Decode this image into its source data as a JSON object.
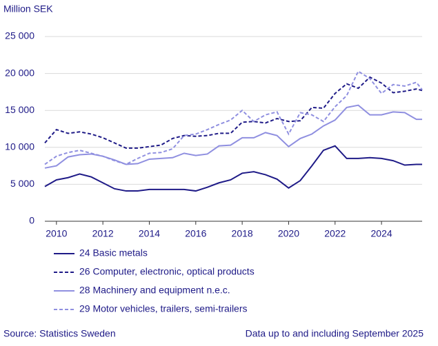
{
  "chart_data": {
    "type": "line",
    "y_label": "Million SEK",
    "x": [
      2009.5,
      2010,
      2010.5,
      2011,
      2011.5,
      2012,
      2012.5,
      2013,
      2013.5,
      2014,
      2014.5,
      2015,
      2015.5,
      2016,
      2016.5,
      2017,
      2017.5,
      2018,
      2018.5,
      2019,
      2019.5,
      2020,
      2020.5,
      2021,
      2021.5,
      2022,
      2022.5,
      2023,
      2023.5,
      2024,
      2024.5,
      2025,
      2025.5,
      2025.75
    ],
    "series": [
      {
        "name": "24 Basic metals",
        "color": "#1e1a87",
        "dash": false,
        "values": [
          4700,
          5600,
          5900,
          6400,
          6000,
          5200,
          4400,
          4100,
          4100,
          4300,
          4300,
          4300,
          4300,
          4100,
          4600,
          5200,
          5600,
          6500,
          6700,
          6300,
          5700,
          4500,
          5500,
          7500,
          9600,
          10200,
          8500,
          8500,
          8600,
          8500,
          8200,
          7600,
          7700,
          7700
        ]
      },
      {
        "name": "26 Computer, electronic, optical products",
        "color": "#1e1a87",
        "dash": true,
        "values": [
          10600,
          12400,
          11900,
          12100,
          11800,
          11300,
          10600,
          9900,
          9900,
          10100,
          10300,
          11200,
          11600,
          11500,
          11600,
          11900,
          11900,
          13400,
          13500,
          13300,
          13900,
          13500,
          13600,
          15400,
          15300,
          17300,
          18600,
          18000,
          19500,
          18700,
          17400,
          17600,
          17900,
          17700
        ]
      },
      {
        "name": "28 Machinery and equipment n.e.c.",
        "color": "#8f8fe0",
        "dash": false,
        "values": [
          7200,
          7500,
          8700,
          9000,
          9100,
          8800,
          8300,
          7700,
          7800,
          8400,
          8500,
          8600,
          9200,
          8900,
          9100,
          10200,
          10300,
          11300,
          11300,
          12000,
          11600,
          10100,
          11200,
          11800,
          12900,
          13700,
          15400,
          15700,
          14400,
          14400,
          14800,
          14700,
          13800,
          13800
        ]
      },
      {
        "name": "29 Motor vehicles, trailers, semi-trailers",
        "color": "#8f8fe0",
        "dash": true,
        "values": [
          7700,
          8800,
          9300,
          9600,
          9200,
          8800,
          8200,
          7700,
          8500,
          9200,
          9300,
          9800,
          11600,
          11800,
          12400,
          13100,
          13700,
          15000,
          13500,
          14400,
          14800,
          11800,
          14700,
          14400,
          13500,
          15500,
          17000,
          20300,
          19300,
          17300,
          18500,
          18300,
          18800,
          17800
        ]
      }
    ],
    "xlim": [
      2009.5,
      2025.75
    ],
    "xticks": [
      2010,
      2012,
      2014,
      2016,
      2018,
      2020,
      2022,
      2024
    ],
    "ylim": [
      0,
      25000
    ],
    "yticks": [
      0,
      {
        "value": 5000,
        "label": "5 000"
      },
      {
        "value": 10000,
        "label": "10 000"
      },
      {
        "value": 15000,
        "label": "15 000"
      },
      {
        "value": 20000,
        "label": "20 000"
      },
      {
        "value": 25000,
        "label": "25 000"
      }
    ],
    "grid": true,
    "source": "Source: Statistics Sweden",
    "note": "Data up to and including September 2025"
  }
}
